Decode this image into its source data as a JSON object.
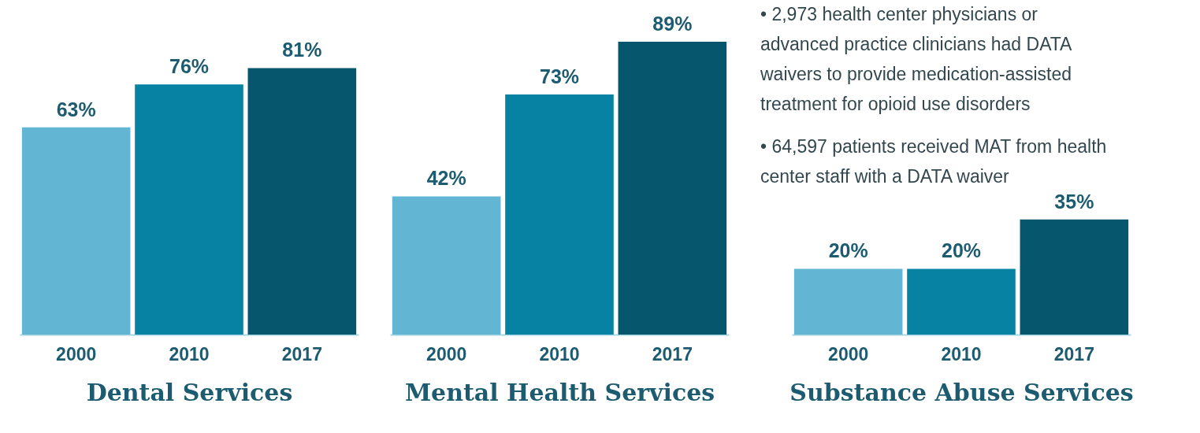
{
  "chart_data": [
    {
      "type": "bar",
      "xlabel": "Dental Services",
      "categories": [
        "2000",
        "2010",
        "2017"
      ],
      "values": [
        63,
        76,
        81
      ],
      "value_labels": [
        "63%",
        "76%",
        "81%"
      ],
      "colors": [
        "#62b6d3",
        "#0882a3",
        "#06566e"
      ],
      "tick_labels": "x",
      "grid": false,
      "legend": false
    },
    {
      "type": "bar",
      "xlabel": "Mental Health Services",
      "categories": [
        "2000",
        "2010",
        "2017"
      ],
      "values": [
        42,
        73,
        89
      ],
      "value_labels": [
        "42%",
        "73%",
        "89%"
      ],
      "colors": [
        "#62b6d3",
        "#0882a3",
        "#06566e"
      ],
      "tick_labels": "x",
      "grid": false,
      "legend": false
    },
    {
      "type": "bar",
      "xlabel": "Substance Abuse Services",
      "categories": [
        "2000",
        "2010",
        "2017"
      ],
      "values": [
        20,
        20,
        35
      ],
      "value_labels": [
        "20%",
        "20%",
        "35%"
      ],
      "colors": [
        "#62b6d3",
        "#0882a3",
        "#06566e"
      ],
      "tick_labels": "x",
      "grid": false,
      "legend": false,
      "annotations": [
        "• 2,973 health center physicians or advanced practice clinicians had DATA waivers to provide medication-assisted treatment for opioid use disorders",
        "• 64,597 patients received MAT from health center staff with a DATA waiver"
      ]
    }
  ]
}
